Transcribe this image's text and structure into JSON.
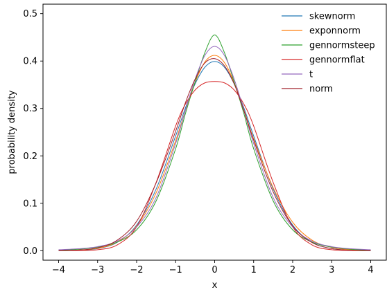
{
  "chart_data": {
    "type": "line",
    "xlabel": "x",
    "ylabel": "probability density",
    "xlim": [
      -4.4,
      4.4
    ],
    "ylim": [
      -0.02,
      0.52
    ],
    "xticks": [
      -4,
      -3,
      -2,
      -1,
      0,
      1,
      2,
      3,
      4
    ],
    "xtick_labels": [
      "−4",
      "−3",
      "−2",
      "−1",
      "0",
      "1",
      "2",
      "3",
      "4"
    ],
    "yticks": [
      0.0,
      0.1,
      0.2,
      0.3,
      0.4,
      0.5
    ],
    "ytick_labels": [
      "0.0",
      "0.1",
      "0.2",
      "0.3",
      "0.4",
      "0.5"
    ],
    "grid": false,
    "legend_position": "top-right",
    "x": [
      -4,
      -3.5,
      -3,
      -2.5,
      -2,
      -1.5,
      -1,
      -0.75,
      -0.5,
      -0.25,
      0,
      0.25,
      0.5,
      0.75,
      1,
      1.5,
      2,
      2.5,
      3,
      3.5,
      4
    ],
    "series": [
      {
        "name": "skewnorm",
        "color": "#1f77b4",
        "values": [
          0.0001,
          0.0009,
          0.0044,
          0.0175,
          0.054,
          0.13,
          0.242,
          0.301,
          0.352,
          0.387,
          0.399,
          0.387,
          0.352,
          0.301,
          0.242,
          0.13,
          0.054,
          0.0175,
          0.0044,
          0.0009,
          0.0001
        ]
      },
      {
        "name": "exponnorm",
        "color": "#ff7f0e",
        "values": [
          0.0002,
          0.0012,
          0.005,
          0.018,
          0.052,
          0.122,
          0.232,
          0.296,
          0.355,
          0.398,
          0.412,
          0.397,
          0.355,
          0.297,
          0.236,
          0.133,
          0.06,
          0.022,
          0.007,
          0.002,
          0.0005
        ]
      },
      {
        "name": "gennormsteep",
        "color": "#2ca02c",
        "values": [
          0.0012,
          0.003,
          0.0075,
          0.018,
          0.044,
          0.105,
          0.215,
          0.289,
          0.356,
          0.418,
          0.455,
          0.418,
          0.356,
          0.289,
          0.215,
          0.105,
          0.044,
          0.018,
          0.0075,
          0.003,
          0.0012
        ]
      },
      {
        "name": "gennormflat",
        "color": "#d62728",
        "values": [
          0.0,
          0.0002,
          0.002,
          0.012,
          0.05,
          0.144,
          0.263,
          0.309,
          0.339,
          0.354,
          0.357,
          0.354,
          0.339,
          0.309,
          0.263,
          0.144,
          0.05,
          0.012,
          0.002,
          0.0002,
          0.0
        ]
      },
      {
        "name": "t",
        "color": "#9467bd",
        "values": [
          0.002,
          0.004,
          0.0085,
          0.02,
          0.05,
          0.112,
          0.226,
          0.296,
          0.362,
          0.412,
          0.431,
          0.412,
          0.362,
          0.296,
          0.226,
          0.112,
          0.05,
          0.02,
          0.0085,
          0.004,
          0.002
        ]
      },
      {
        "name": "norm",
        "color": "#a0202a",
        "values": [
          0.0004,
          0.0014,
          0.006,
          0.022,
          0.062,
          0.143,
          0.252,
          0.312,
          0.362,
          0.396,
          0.405,
          0.39,
          0.352,
          0.295,
          0.233,
          0.124,
          0.052,
          0.017,
          0.0045,
          0.0009,
          0.0002
        ]
      }
    ]
  }
}
